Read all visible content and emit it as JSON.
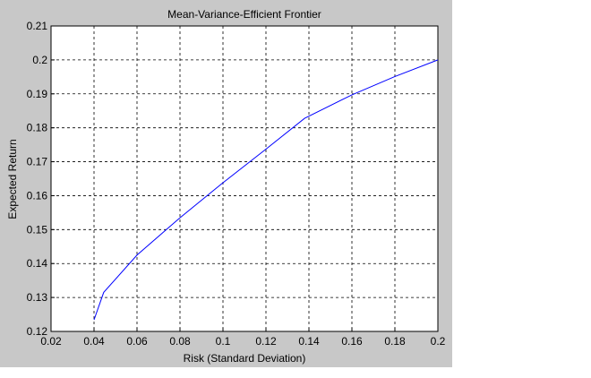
{
  "chart_data": {
    "type": "line",
    "title": "Mean-Variance-Efficient Frontier",
    "x_label": "Risk (Standard Deviation)",
    "y_label": "Expected Return",
    "x": [
      0.04,
      0.0445,
      0.06,
      0.08,
      0.1,
      0.12,
      0.138,
      0.16,
      0.18,
      0.2
    ],
    "series": [
      {
        "color": "#0000ff",
        "values": [
          0.1234,
          0.1315,
          0.1425,
          0.1535,
          0.1638,
          0.1737,
          0.1828,
          0.1897,
          0.1951,
          0.2
        ]
      }
    ],
    "xlim": [
      0.02,
      0.2
    ],
    "ylim": [
      0.12,
      0.21
    ],
    "xticks": [
      0.02,
      0.04,
      0.06,
      0.08,
      0.1,
      0.12,
      0.14,
      0.16,
      0.18,
      0.2
    ],
    "yticks": [
      0.12,
      0.13,
      0.14,
      0.15,
      0.16,
      0.17,
      0.18,
      0.19,
      0.2,
      0.21
    ],
    "grid": true
  }
}
